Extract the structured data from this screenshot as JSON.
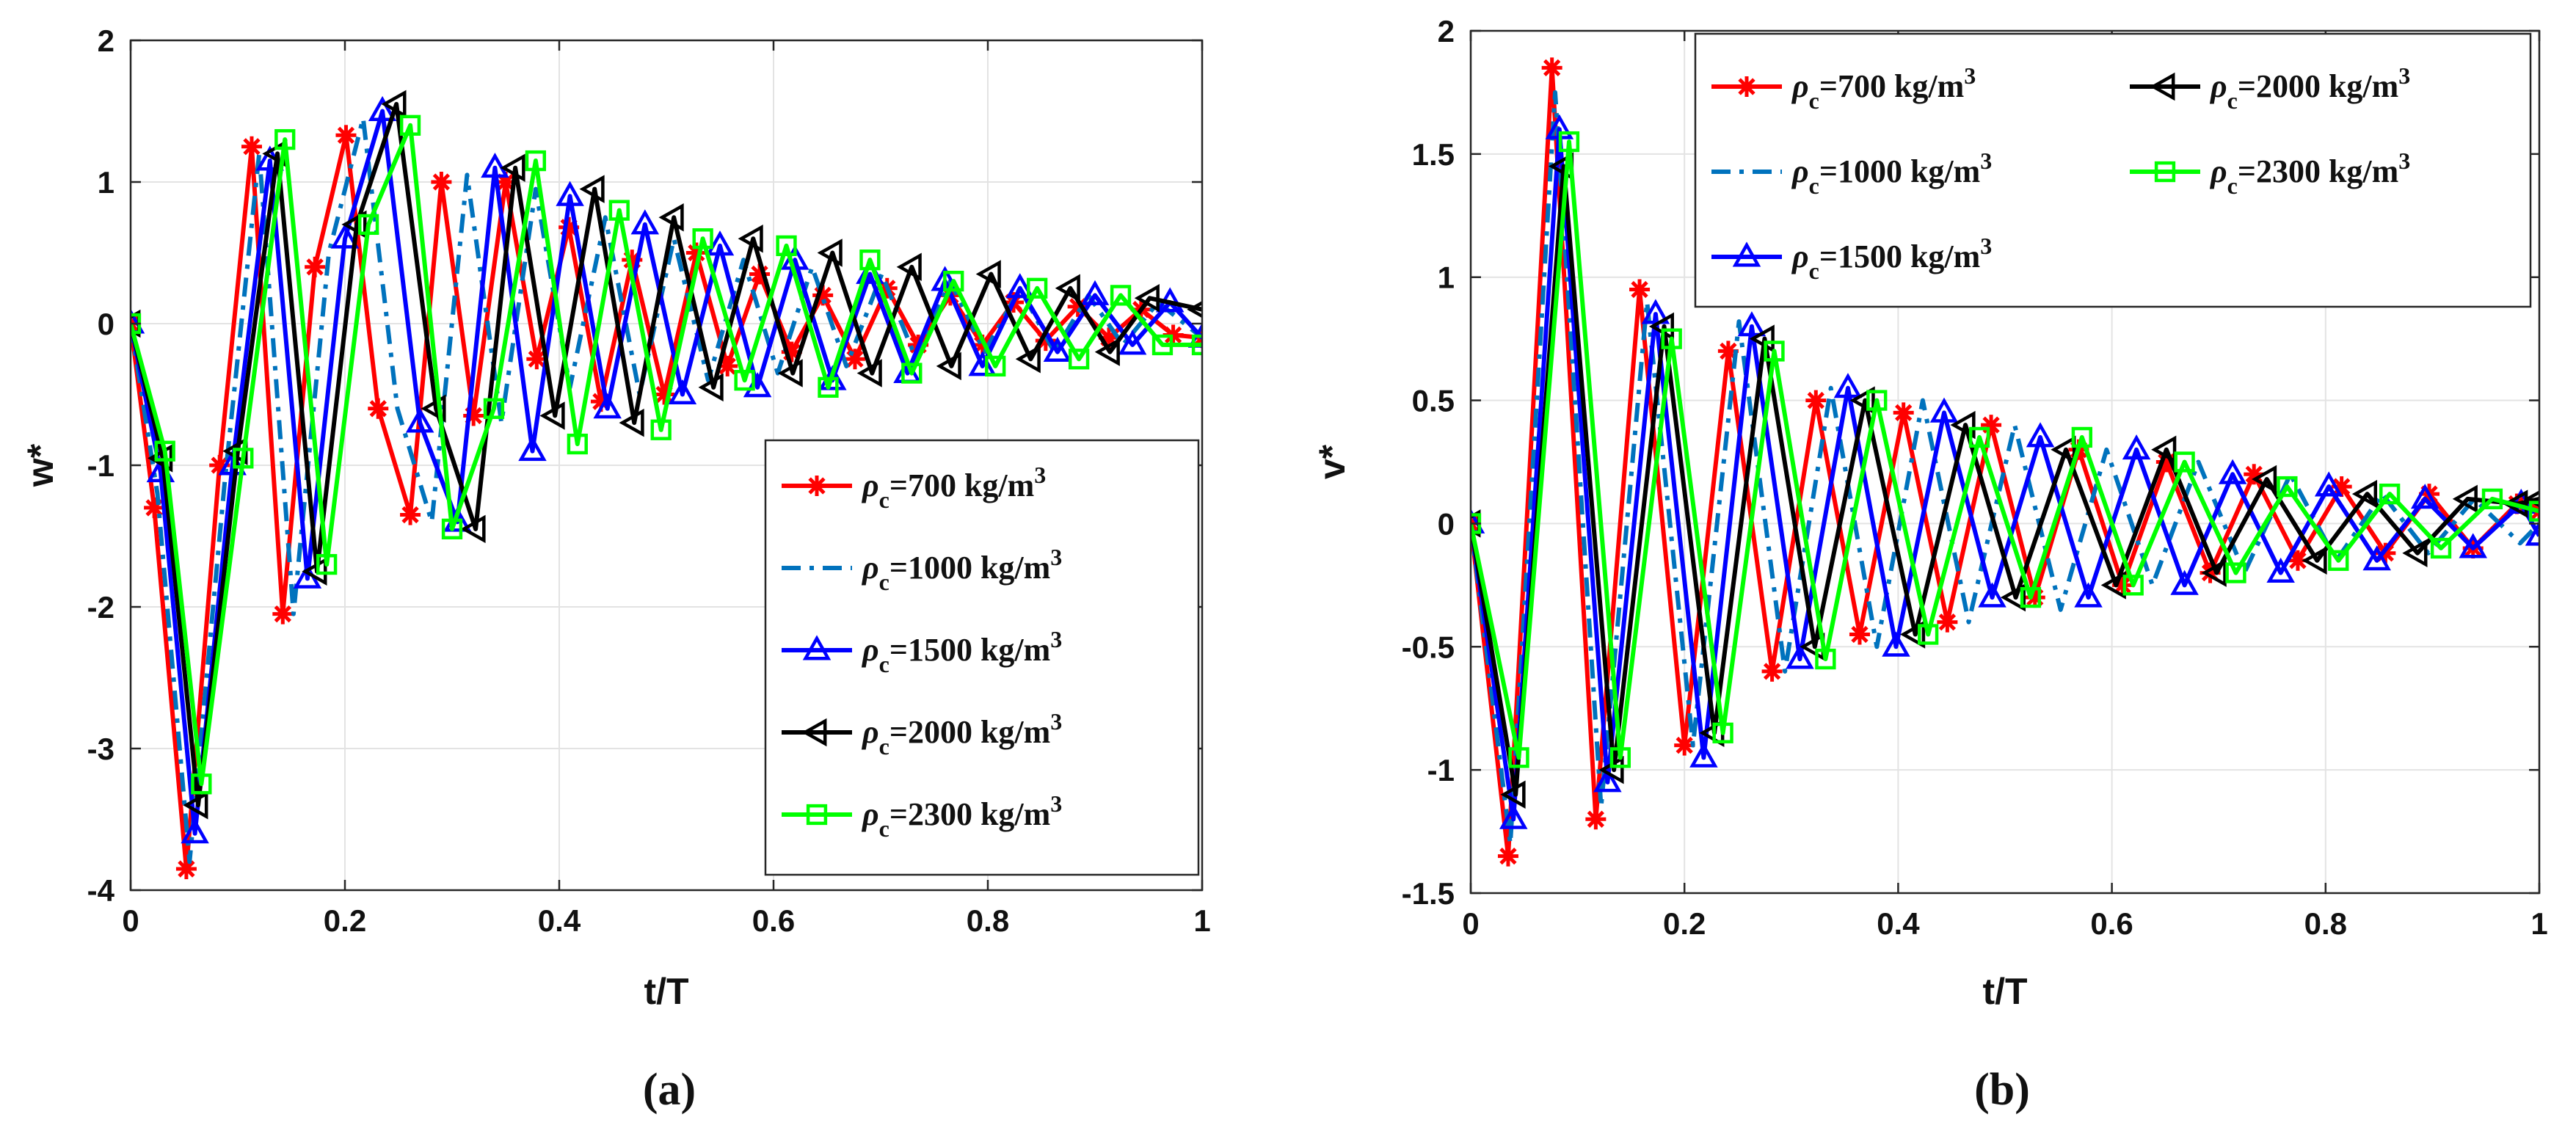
{
  "chart_data": [
    {
      "type": "line",
      "panel": "a",
      "caption": "(a)",
      "xlabel": "t/T",
      "ylabel": "w*",
      "xlim": [
        0,
        1
      ],
      "ylim": [
        -4,
        2
      ],
      "xticks": [
        0,
        0.2,
        0.4,
        0.6,
        0.8,
        1
      ],
      "xtick_labels": [
        "0",
        "0.2",
        "0.4",
        "0.6",
        "0.8",
        "1"
      ],
      "yticks": [
        -4,
        -3,
        -2,
        -1,
        0,
        1,
        2
      ],
      "ytick_labels": [
        "-4",
        "-3",
        "-2",
        "-1",
        "0",
        "1",
        "2"
      ],
      "grid": true,
      "legend_position": "lower-right",
      "legend_columns": 1,
      "series": [
        {
          "name": "ρc=700 kg/m3",
          "sym": "ρ",
          "sub": "c",
          "txt": "=700 kg/m",
          "sup": "3",
          "color": "#ff0000",
          "marker": "asterisk",
          "dash": "solid",
          "x": [
            0,
            0.022,
            0.052,
            0.083,
            0.113,
            0.142,
            0.172,
            0.201,
            0.231,
            0.261,
            0.29,
            0.32,
            0.35,
            0.379,
            0.409,
            0.439,
            0.468,
            0.498,
            0.528,
            0.557,
            0.587,
            0.617,
            0.646,
            0.676,
            0.706,
            0.735,
            0.765,
            0.795,
            0.824,
            0.854,
            0.884,
            0.913,
            0.943,
            0.973,
            1.0
          ],
          "y": [
            0,
            -1.3,
            -3.85,
            -1.0,
            1.25,
            -2.05,
            0.4,
            1.33,
            -0.6,
            -1.35,
            1.0,
            -0.65,
            1.0,
            -0.25,
            0.68,
            -0.55,
            0.45,
            -0.5,
            0.5,
            -0.3,
            0.35,
            -0.2,
            0.2,
            -0.25,
            0.25,
            -0.15,
            0.2,
            -0.15,
            0.15,
            -0.12,
            0.12,
            -0.1,
            0.1,
            -0.08,
            -0.1
          ]
        },
        {
          "name": "ρc=1000 kg/m3",
          "sym": "ρ",
          "sub": "c",
          "txt": "=1000 kg/m",
          "sup": "3",
          "color": "#0072bd",
          "marker": "none",
          "dash": "dashdot",
          "x": [
            0,
            0.025,
            0.055,
            0.088,
            0.12,
            0.152,
            0.185,
            0.217,
            0.249,
            0.281,
            0.314,
            0.346,
            0.378,
            0.41,
            0.443,
            0.475,
            0.507,
            0.539,
            0.572,
            0.604,
            0.636,
            0.668,
            0.701,
            0.733,
            0.765,
            0.797,
            0.83,
            0.862,
            0.894,
            0.926,
            0.959,
            1.0
          ],
          "y": [
            0,
            -1.2,
            -3.8,
            -1.1,
            1.2,
            -2.05,
            0.5,
            1.45,
            -0.6,
            -1.4,
            1.05,
            -0.7,
            0.95,
            -0.45,
            0.75,
            -0.5,
            0.6,
            -0.4,
            0.45,
            -0.35,
            0.4,
            -0.3,
            0.35,
            -0.25,
            0.3,
            -0.2,
            0.25,
            -0.2,
            0.2,
            -0.15,
            0.15,
            -0.1
          ]
        },
        {
          "name": "ρc=1500 kg/m3",
          "sym": "ρ",
          "sub": "c",
          "txt": "=1500 kg/m",
          "sup": "3",
          "color": "#0000ff",
          "marker": "triangle-up",
          "dash": "solid",
          "x": [
            0,
            0.028,
            0.06,
            0.095,
            0.13,
            0.165,
            0.2,
            0.235,
            0.27,
            0.305,
            0.34,
            0.375,
            0.41,
            0.445,
            0.48,
            0.515,
            0.55,
            0.585,
            0.62,
            0.655,
            0.69,
            0.725,
            0.76,
            0.795,
            0.83,
            0.865,
            0.9,
            0.935,
            0.97,
            1.0
          ],
          "y": [
            0,
            -1.05,
            -3.6,
            -1.0,
            1.15,
            -1.8,
            0.6,
            1.5,
            -0.7,
            -1.4,
            1.1,
            -0.9,
            0.9,
            -0.6,
            0.7,
            -0.5,
            0.55,
            -0.45,
            0.45,
            -0.4,
            0.35,
            -0.35,
            0.3,
            -0.3,
            0.25,
            -0.2,
            0.2,
            -0.15,
            0.15,
            -0.1
          ]
        },
        {
          "name": "ρc=2000 kg/m3",
          "sym": "ρ",
          "sub": "c",
          "txt": "=2000 kg/m",
          "sup": "3",
          "color": "#000000",
          "marker": "triangle-left",
          "dash": "solid",
          "x": [
            0,
            0.03,
            0.063,
            0.1,
            0.137,
            0.174,
            0.211,
            0.248,
            0.285,
            0.322,
            0.359,
            0.396,
            0.433,
            0.47,
            0.507,
            0.544,
            0.581,
            0.618,
            0.655,
            0.692,
            0.729,
            0.766,
            0.803,
            0.84,
            0.877,
            0.914,
            0.951,
            1.0
          ],
          "y": [
            0,
            -0.95,
            -3.4,
            -0.9,
            1.2,
            -1.75,
            0.7,
            1.55,
            -0.6,
            -1.45,
            1.1,
            -0.65,
            0.95,
            -0.7,
            0.75,
            -0.45,
            0.6,
            -0.35,
            0.5,
            -0.35,
            0.4,
            -0.3,
            0.35,
            -0.25,
            0.25,
            -0.2,
            0.18,
            0.1
          ]
        },
        {
          "name": "ρc=2300 kg/m3",
          "sym": "ρ",
          "sub": "c",
          "txt": "=2300 kg/m",
          "sup": "3",
          "color": "#00ff00",
          "marker": "square",
          "dash": "solid",
          "x": [
            0,
            0.032,
            0.066,
            0.105,
            0.144,
            0.183,
            0.222,
            0.261,
            0.3,
            0.339,
            0.378,
            0.417,
            0.456,
            0.495,
            0.534,
            0.573,
            0.612,
            0.651,
            0.69,
            0.729,
            0.768,
            0.807,
            0.846,
            0.885,
            0.924,
            0.963,
            1.0
          ],
          "y": [
            0,
            -0.9,
            -3.25,
            -0.95,
            1.3,
            -1.7,
            0.7,
            1.4,
            -1.45,
            -0.6,
            1.15,
            -0.85,
            0.8,
            -0.75,
            0.6,
            -0.4,
            0.55,
            -0.45,
            0.45,
            -0.35,
            0.3,
            -0.3,
            0.25,
            -0.25,
            0.2,
            -0.15,
            -0.15
          ]
        }
      ]
    },
    {
      "type": "line",
      "panel": "b",
      "caption": "(b)",
      "xlabel": "t/T",
      "ylabel": "v*",
      "xlim": [
        0,
        1
      ],
      "ylim": [
        -1.5,
        2
      ],
      "xticks": [
        0,
        0.2,
        0.4,
        0.6,
        0.8,
        1
      ],
      "xtick_labels": [
        "0",
        "0.2",
        "0.4",
        "0.6",
        "0.8",
        "1"
      ],
      "yticks": [
        -1.5,
        -1,
        -0.5,
        0,
        0.5,
        1,
        1.5,
        2
      ],
      "ytick_labels": [
        "-1.5",
        "-1",
        "-0.5",
        "0",
        "0.5",
        "1",
        "1.5",
        "2"
      ],
      "grid": true,
      "legend_position": "top",
      "legend_columns": 2,
      "series": [
        {
          "name": "ρc=700 kg/m3",
          "sym": "ρ",
          "sub": "c",
          "txt": "=700 kg/m",
          "sup": "3",
          "color": "#ff0000",
          "marker": "asterisk",
          "dash": "solid",
          "x": [
            0,
            0.035,
            0.076,
            0.117,
            0.158,
            0.2,
            0.241,
            0.282,
            0.323,
            0.364,
            0.405,
            0.446,
            0.487,
            0.528,
            0.569,
            0.61,
            0.651,
            0.692,
            0.733,
            0.774,
            0.815,
            0.856,
            0.897,
            0.938,
            0.979,
            1.0
          ],
          "y": [
            0,
            -1.35,
            1.85,
            -1.2,
            0.95,
            -0.9,
            0.7,
            -0.6,
            0.5,
            -0.45,
            0.45,
            -0.4,
            0.4,
            -0.3,
            0.3,
            -0.25,
            0.25,
            -0.2,
            0.2,
            -0.15,
            0.15,
            -0.12,
            0.12,
            -0.1,
            0.08,
            0.05
          ]
        },
        {
          "name": "ρc=1000 kg/m3",
          "sym": "ρ",
          "sub": "c",
          "txt": "=1000 kg/m",
          "sup": "3",
          "color": "#0072bd",
          "marker": "none",
          "dash": "dashdot",
          "x": [
            0,
            0.037,
            0.079,
            0.122,
            0.165,
            0.208,
            0.251,
            0.294,
            0.337,
            0.38,
            0.423,
            0.466,
            0.509,
            0.552,
            0.595,
            0.638,
            0.681,
            0.724,
            0.767,
            0.81,
            0.853,
            0.896,
            0.939,
            0.982,
            1.0
          ],
          "y": [
            0,
            -1.3,
            1.75,
            -1.15,
            0.9,
            -0.9,
            0.82,
            -0.6,
            0.55,
            -0.5,
            0.5,
            -0.4,
            0.4,
            -0.35,
            0.3,
            -0.25,
            0.25,
            -0.2,
            0.2,
            -0.15,
            0.12,
            -0.12,
            0.1,
            -0.08,
            0.0
          ]
        },
        {
          "name": "ρc=1500 kg/m3",
          "sym": "ρ",
          "sub": "c",
          "txt": "=1500 kg/m",
          "sup": "3",
          "color": "#0000ff",
          "marker": "triangle-up",
          "dash": "solid",
          "x": [
            0,
            0.04,
            0.083,
            0.128,
            0.173,
            0.218,
            0.263,
            0.308,
            0.353,
            0.398,
            0.443,
            0.488,
            0.533,
            0.578,
            0.623,
            0.668,
            0.713,
            0.758,
            0.803,
            0.848,
            0.893,
            0.938,
            0.983,
            1.0
          ],
          "y": [
            0,
            -1.2,
            1.6,
            -1.05,
            0.85,
            -0.95,
            0.8,
            -0.55,
            0.55,
            -0.5,
            0.45,
            -0.3,
            0.35,
            -0.3,
            0.3,
            -0.25,
            0.2,
            -0.2,
            0.15,
            -0.15,
            0.1,
            -0.1,
            0.08,
            -0.05
          ]
        },
        {
          "name": "ρc=2000 kg/m3",
          "sym": "ρ",
          "sub": "c",
          "txt": "=2000 kg/m",
          "sup": "3",
          "color": "#000000",
          "marker": "triangle-left",
          "dash": "solid",
          "x": [
            0,
            0.042,
            0.087,
            0.134,
            0.181,
            0.228,
            0.275,
            0.322,
            0.369,
            0.416,
            0.463,
            0.51,
            0.557,
            0.604,
            0.651,
            0.698,
            0.745,
            0.792,
            0.839,
            0.886,
            0.933,
            0.98,
            1.0
          ],
          "y": [
            0,
            -1.1,
            1.45,
            -1.0,
            0.8,
            -0.85,
            0.75,
            -0.5,
            0.5,
            -0.45,
            0.4,
            -0.3,
            0.3,
            -0.25,
            0.3,
            -0.2,
            0.18,
            -0.15,
            0.12,
            -0.12,
            0.1,
            0.08,
            0.1
          ]
        },
        {
          "name": "ρc=2300 kg/m3",
          "sym": "ρ",
          "sub": "c",
          "txt": "=2300 kg/m",
          "sup": "3",
          "color": "#00ff00",
          "marker": "square",
          "dash": "solid",
          "x": [
            0,
            0.045,
            0.092,
            0.14,
            0.188,
            0.236,
            0.284,
            0.332,
            0.38,
            0.428,
            0.476,
            0.524,
            0.572,
            0.62,
            0.668,
            0.716,
            0.764,
            0.812,
            0.86,
            0.908,
            0.956,
            1.0
          ],
          "y": [
            0,
            -0.95,
            1.55,
            -0.95,
            0.75,
            -0.85,
            0.7,
            -0.55,
            0.5,
            -0.45,
            0.35,
            -0.3,
            0.35,
            -0.25,
            0.25,
            -0.2,
            0.15,
            -0.15,
            0.12,
            -0.1,
            0.1,
            0.05
          ]
        }
      ]
    }
  ]
}
